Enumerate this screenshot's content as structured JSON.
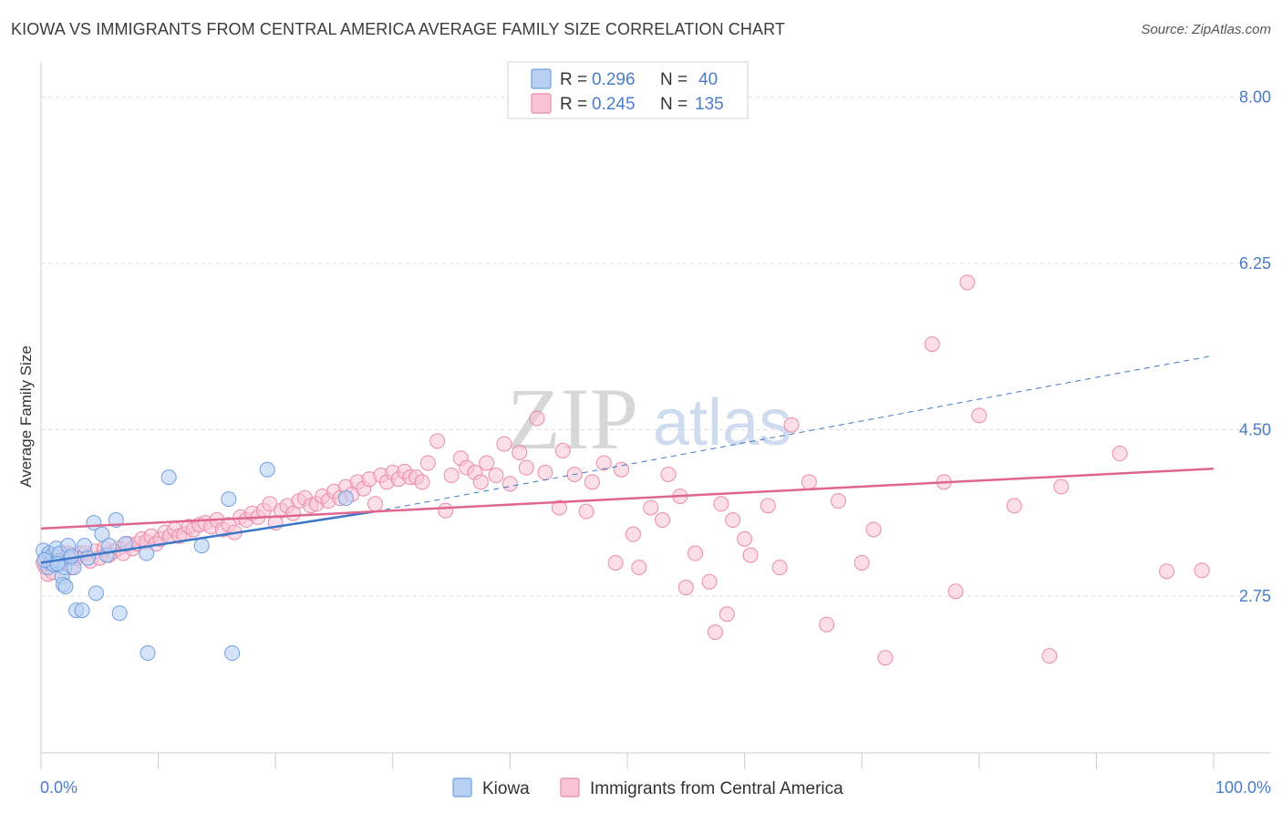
{
  "title": "KIOWA VS IMMIGRANTS FROM CENTRAL AMERICA AVERAGE FAMILY SIZE CORRELATION CHART",
  "source": "Source: ZipAtlas.com",
  "watermark": {
    "zip": "ZIP",
    "atlas": "atlas"
  },
  "legend_top": [
    {
      "r_label": "R =",
      "r_value": "0.296",
      "n_label": "N =",
      "n_value": "40"
    },
    {
      "r_label": "R =",
      "r_value": "0.245",
      "n_label": "N =",
      "n_value": "135"
    }
  ],
  "colors": {
    "kiowa_fill": "#b9d0f3",
    "kiowa_stroke": "#6f9fe0",
    "kiowa_line": "#3d78c9",
    "imm_fill": "#f8c3d4",
    "imm_stroke": "#eb8aab",
    "imm_line": "#e0668f",
    "grid": "#dddddd",
    "tick_text": "#4a7cc9"
  },
  "chart_data": {
    "type": "scatter",
    "title": "KIOWA VS IMMIGRANTS FROM CENTRAL AMERICA AVERAGE FAMILY SIZE CORRELATION CHART",
    "xlabel": "",
    "ylabel": "Average Family Size",
    "xlim": [
      0,
      100
    ],
    "ylim": [
      1.1,
      8.35
    ],
    "x_tick_labels": [
      "0.0%",
      "100.0%"
    ],
    "y_ticks": [
      2.75,
      4.5,
      6.25,
      8.0
    ],
    "y_tick_labels": [
      "2.75",
      "4.50",
      "6.25",
      "8.00"
    ],
    "grid": true,
    "legend_position": "bottom",
    "series": [
      {
        "name": "Kiowa",
        "R": 0.296,
        "N": 40,
        "trend": {
          "x": [
            0,
            28.5
          ],
          "y": [
            3.1,
            3.64
          ],
          "extended_to": [
            100,
            5.28
          ]
        },
        "points": [
          [
            0.2,
            3.23
          ],
          [
            0.5,
            3.15
          ],
          [
            0.6,
            3.05
          ],
          [
            0.7,
            3.2
          ],
          [
            0.8,
            3.1
          ],
          [
            1.0,
            3.18
          ],
          [
            1.1,
            3.08
          ],
          [
            1.3,
            3.25
          ],
          [
            1.5,
            3.12
          ],
          [
            1.6,
            3.2
          ],
          [
            1.8,
            2.95
          ],
          [
            1.9,
            2.87
          ],
          [
            2.0,
            3.05
          ],
          [
            2.1,
            2.85
          ],
          [
            2.3,
            3.28
          ],
          [
            2.5,
            3.15
          ],
          [
            2.8,
            3.05
          ],
          [
            3.0,
            2.6
          ],
          [
            3.5,
            2.6
          ],
          [
            3.7,
            3.28
          ],
          [
            4.0,
            3.15
          ],
          [
            4.5,
            3.52
          ],
          [
            4.7,
            2.78
          ],
          [
            5.2,
            3.4
          ],
          [
            5.6,
            3.18
          ],
          [
            5.8,
            3.28
          ],
          [
            6.4,
            3.55
          ],
          [
            6.7,
            2.57
          ],
          [
            7.2,
            3.3
          ],
          [
            9.0,
            3.2
          ],
          [
            9.1,
            2.15
          ],
          [
            10.9,
            4.0
          ],
          [
            13.7,
            3.28
          ],
          [
            16.0,
            3.77
          ],
          [
            16.3,
            2.15
          ],
          [
            19.3,
            4.08
          ],
          [
            26.0,
            3.78
          ],
          [
            0.3,
            3.13
          ],
          [
            1.4,
            3.09
          ],
          [
            2.6,
            3.17
          ]
        ]
      },
      {
        "name": "Immigrants from Central America",
        "R": 0.245,
        "N": 135,
        "trend": {
          "x": [
            0,
            100
          ],
          "y": [
            3.46,
            4.09
          ]
        },
        "points": [
          [
            0.2,
            3.1
          ],
          [
            0.4,
            3.05
          ],
          [
            0.6,
            2.98
          ],
          [
            0.8,
            3.12
          ],
          [
            1.0,
            3.0
          ],
          [
            1.2,
            3.15
          ],
          [
            1.5,
            3.08
          ],
          [
            1.8,
            3.2
          ],
          [
            2.0,
            3.1
          ],
          [
            2.3,
            3.2
          ],
          [
            2.6,
            3.05
          ],
          [
            3.0,
            3.15
          ],
          [
            3.4,
            3.2
          ],
          [
            3.8,
            3.2
          ],
          [
            4.2,
            3.12
          ],
          [
            4.6,
            3.22
          ],
          [
            5.0,
            3.15
          ],
          [
            5.4,
            3.25
          ],
          [
            5.8,
            3.18
          ],
          [
            6.2,
            3.22
          ],
          [
            6.6,
            3.25
          ],
          [
            7.0,
            3.2
          ],
          [
            7.4,
            3.3
          ],
          [
            7.8,
            3.25
          ],
          [
            8.2,
            3.3
          ],
          [
            8.6,
            3.35
          ],
          [
            9.0,
            3.32
          ],
          [
            9.4,
            3.38
          ],
          [
            9.8,
            3.3
          ],
          [
            10.2,
            3.35
          ],
          [
            10.6,
            3.42
          ],
          [
            11.0,
            3.38
          ],
          [
            11.4,
            3.45
          ],
          [
            11.8,
            3.38
          ],
          [
            12.2,
            3.4
          ],
          [
            12.6,
            3.48
          ],
          [
            13.0,
            3.45
          ],
          [
            13.5,
            3.5
          ],
          [
            14.0,
            3.52
          ],
          [
            14.5,
            3.48
          ],
          [
            15.0,
            3.55
          ],
          [
            15.5,
            3.45
          ],
          [
            16.0,
            3.5
          ],
          [
            16.5,
            3.42
          ],
          [
            17.0,
            3.58
          ],
          [
            17.5,
            3.55
          ],
          [
            18.0,
            3.62
          ],
          [
            18.5,
            3.58
          ],
          [
            19.0,
            3.65
          ],
          [
            19.5,
            3.72
          ],
          [
            20.0,
            3.52
          ],
          [
            20.5,
            3.65
          ],
          [
            21.0,
            3.7
          ],
          [
            21.5,
            3.62
          ],
          [
            22.0,
            3.75
          ],
          [
            22.5,
            3.78
          ],
          [
            23.0,
            3.7
          ],
          [
            23.5,
            3.72
          ],
          [
            24.0,
            3.8
          ],
          [
            24.5,
            3.75
          ],
          [
            25.0,
            3.85
          ],
          [
            25.5,
            3.78
          ],
          [
            26.0,
            3.9
          ],
          [
            26.5,
            3.82
          ],
          [
            27.0,
            3.95
          ],
          [
            27.5,
            3.88
          ],
          [
            28.0,
            3.98
          ],
          [
            28.5,
            3.72
          ],
          [
            29.0,
            4.02
          ],
          [
            29.5,
            3.95
          ],
          [
            30.0,
            4.05
          ],
          [
            30.5,
            3.98
          ],
          [
            31.0,
            4.06
          ],
          [
            31.5,
            4.0
          ],
          [
            32.0,
            4.0
          ],
          [
            32.5,
            3.95
          ],
          [
            33.0,
            4.15
          ],
          [
            33.8,
            4.38
          ],
          [
            34.5,
            3.65
          ],
          [
            35.0,
            4.02
          ],
          [
            35.8,
            4.2
          ],
          [
            36.3,
            4.1
          ],
          [
            37.0,
            4.05
          ],
          [
            37.5,
            3.95
          ],
          [
            38.0,
            4.15
          ],
          [
            38.8,
            4.02
          ],
          [
            39.5,
            4.35
          ],
          [
            40.0,
            3.93
          ],
          [
            40.8,
            4.26
          ],
          [
            41.4,
            4.1
          ],
          [
            42.3,
            4.62
          ],
          [
            43.0,
            4.05
          ],
          [
            44.2,
            3.68
          ],
          [
            44.5,
            4.28
          ],
          [
            45.5,
            4.03
          ],
          [
            46.5,
            3.64
          ],
          [
            47.0,
            3.95
          ],
          [
            48.0,
            4.15
          ],
          [
            49.0,
            3.1
          ],
          [
            49.5,
            4.08
          ],
          [
            50.5,
            3.4
          ],
          [
            51.0,
            3.05
          ],
          [
            52.0,
            3.68
          ],
          [
            53.0,
            3.55
          ],
          [
            53.5,
            4.03
          ],
          [
            54.5,
            3.8
          ],
          [
            55.0,
            2.84
          ],
          [
            55.8,
            3.2
          ],
          [
            57.0,
            2.9
          ],
          [
            57.5,
            2.37
          ],
          [
            58.0,
            3.72
          ],
          [
            58.5,
            2.56
          ],
          [
            59.0,
            3.55
          ],
          [
            60.0,
            3.35
          ],
          [
            60.5,
            3.18
          ],
          [
            62.0,
            3.7
          ],
          [
            63.0,
            3.05
          ],
          [
            64.0,
            4.55
          ],
          [
            65.5,
            3.95
          ],
          [
            67.0,
            2.45
          ],
          [
            68.0,
            3.75
          ],
          [
            70.0,
            3.1
          ],
          [
            71.0,
            3.45
          ],
          [
            72.0,
            2.1
          ],
          [
            76.0,
            5.4
          ],
          [
            77.0,
            3.95
          ],
          [
            78.0,
            2.8
          ],
          [
            79.0,
            6.05
          ],
          [
            80.0,
            4.65
          ],
          [
            83.0,
            3.7
          ],
          [
            86.0,
            2.12
          ],
          [
            87.0,
            3.9
          ],
          [
            92.0,
            4.25
          ],
          [
            96.0,
            3.01
          ],
          [
            99.0,
            3.02
          ]
        ]
      }
    ]
  }
}
